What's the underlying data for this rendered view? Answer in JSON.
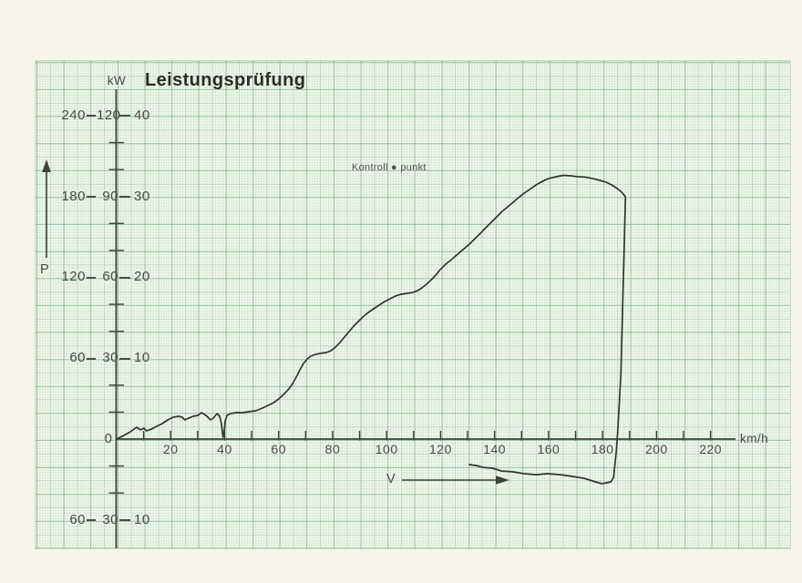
{
  "page": {
    "background": "#f8f5ec",
    "paper_background": "#f3f7ee",
    "grid_color": "#9fc8a6",
    "ink_color": "#34342e"
  },
  "header": {
    "title": "Leistungsprüfung"
  },
  "annotations": {
    "kontrollpunkt": "Kontroll ● punkt",
    "p_label": "P",
    "v_label": "V"
  },
  "y_axis": {
    "unit": "kW",
    "origin_label": "0",
    "scale_rows": [
      {
        "labels": [
          "240",
          "120",
          "40"
        ],
        "value_kw": 240
      },
      {
        "labels": [
          "180",
          "90",
          "30"
        ],
        "value_kw": 180
      },
      {
        "labels": [
          "120",
          "60",
          "20"
        ],
        "value_kw": 120
      },
      {
        "labels": [
          "60",
          "30",
          "10"
        ],
        "value_kw": 60
      },
      {
        "labels": [
          "60",
          "30",
          "10"
        ],
        "value_kw": -60
      }
    ],
    "minor_tick_values_kw": [
      220,
      200,
      160,
      140,
      100,
      80,
      40,
      20,
      -20,
      -40
    ]
  },
  "x_axis": {
    "unit": "km/h",
    "labels": [
      20,
      40,
      60,
      80,
      100,
      120,
      140,
      160,
      180,
      200,
      220
    ],
    "tick_values": [
      10,
      20,
      30,
      40,
      50,
      60,
      70,
      80,
      90,
      100,
      110,
      120,
      130,
      140,
      150,
      160,
      170,
      180,
      190,
      200,
      210,
      220
    ]
  },
  "chart_data": {
    "type": "line",
    "title": "Leistungsprüfung",
    "xlabel": "km/h",
    "ylabel": "kW",
    "x_range": [
      0,
      230
    ],
    "y_scales": {
      "outer_kW": [
        -80,
        240
      ],
      "middle": [
        -40,
        120
      ],
      "inner": [
        -13.3,
        40
      ]
    },
    "grid": true,
    "legend": "none",
    "annotation_label": "Kontroll ● punkt",
    "series": [
      {
        "name": "dyno-trace",
        "units": [
          "km/h",
          "kW (outer scale)"
        ],
        "points": [
          [
            0,
            0
          ],
          [
            2.7,
            2.7
          ],
          [
            5.1,
            5.4
          ],
          [
            7.4,
            8.8
          ],
          [
            8.8,
            6.8
          ],
          [
            10.1,
            8.1
          ],
          [
            11.1,
            6.1
          ],
          [
            12.8,
            7.4
          ],
          [
            14.9,
            9.5
          ],
          [
            16.9,
            11.5
          ],
          [
            18.9,
            14.2
          ],
          [
            20.9,
            16.2
          ],
          [
            23,
            16.9
          ],
          [
            24.3,
            16.2
          ],
          [
            25.3,
            14.2
          ],
          [
            26.7,
            15.6
          ],
          [
            28.4,
            16.9
          ],
          [
            30.1,
            17.6
          ],
          [
            31.4,
            19.6
          ],
          [
            33.1,
            17.6
          ],
          [
            34.8,
            14.2
          ],
          [
            36.1,
            16.2
          ],
          [
            37.2,
            18.9
          ],
          [
            38.2,
            16.9
          ],
          [
            38.8,
            11.5
          ],
          [
            39.4,
            1.4
          ],
          [
            39.9,
            6.8
          ],
          [
            40.2,
            13.5
          ],
          [
            40.9,
            17.6
          ],
          [
            42.2,
            18.9
          ],
          [
            44.2,
            19.6
          ],
          [
            46.6,
            19.6
          ],
          [
            49,
            20.3
          ],
          [
            51.7,
            21
          ],
          [
            54,
            23
          ],
          [
            56.1,
            25
          ],
          [
            58.1,
            27
          ],
          [
            60.1,
            29.8
          ],
          [
            61.8,
            33.1
          ],
          [
            63.5,
            36.5
          ],
          [
            65.2,
            41.2
          ],
          [
            66.5,
            46
          ],
          [
            67.9,
            51.4
          ],
          [
            69.2,
            56.1
          ],
          [
            70.6,
            59.5
          ],
          [
            71.9,
            61.5
          ],
          [
            73.6,
            62.9
          ],
          [
            75.6,
            63.6
          ],
          [
            77.7,
            64.2
          ],
          [
            79.4,
            65.6
          ],
          [
            81.1,
            68.3
          ],
          [
            82.7,
            71.7
          ],
          [
            84.4,
            75.7
          ],
          [
            86.1,
            79.8
          ],
          [
            87.8,
            83.8
          ],
          [
            89.5,
            87.2
          ],
          [
            91.2,
            90.6
          ],
          [
            93.2,
            94
          ],
          [
            95.2,
            96.7
          ],
          [
            97.2,
            99.4
          ],
          [
            99.3,
            102.1
          ],
          [
            101.3,
            104.1
          ],
          [
            103.3,
            106.2
          ],
          [
            105.4,
            107.5
          ],
          [
            107.7,
            108.2
          ],
          [
            109.8,
            108.9
          ],
          [
            111.5,
            110.2
          ],
          [
            113.1,
            112.2
          ],
          [
            114.8,
            114.9
          ],
          [
            116.6,
            118.3
          ],
          [
            118.2,
            121.7
          ],
          [
            119.9,
            125.8
          ],
          [
            121.9,
            129.8
          ],
          [
            124,
            133.2
          ],
          [
            126,
            136.6
          ],
          [
            128.3,
            140.6
          ],
          [
            130.7,
            144.7
          ],
          [
            132.7,
            148.7
          ],
          [
            134.8,
            152.8
          ],
          [
            136.8,
            156.9
          ],
          [
            138.8,
            160.9
          ],
          [
            140.9,
            165
          ],
          [
            142.8,
            169
          ],
          [
            144.9,
            172.4
          ],
          [
            146.9,
            175.8
          ],
          [
            148.9,
            179.2
          ],
          [
            151,
            182.6
          ],
          [
            153,
            185.3
          ],
          [
            155.4,
            188.6
          ],
          [
            157.7,
            191.3
          ],
          [
            160.1,
            193.4
          ],
          [
            162.8,
            194.7
          ],
          [
            165.5,
            195.7
          ],
          [
            168.2,
            195.4
          ],
          [
            170.9,
            194.7
          ],
          [
            173.6,
            194.4
          ],
          [
            176.3,
            193.4
          ],
          [
            179,
            192
          ],
          [
            181.3,
            190.7
          ],
          [
            183.4,
            188.6
          ],
          [
            185.4,
            186
          ],
          [
            187.1,
            183.2
          ],
          [
            188.5,
            179.9
          ],
          [
            188.1,
            150.1
          ],
          [
            187.4,
            96
          ],
          [
            186.8,
            48.7
          ],
          [
            185.7,
            8.1
          ],
          [
            185.1,
            -8.8
          ],
          [
            184.4,
            -22.3
          ],
          [
            184.1,
            -28.4
          ],
          [
            183.1,
            -31.8
          ],
          [
            179.7,
            -33.1
          ],
          [
            176.3,
            -31.1
          ],
          [
            173,
            -29.1
          ],
          [
            168.9,
            -27.7
          ],
          [
            164.5,
            -26.4
          ],
          [
            159.5,
            -25.7
          ],
          [
            155.4,
            -26.4
          ],
          [
            151,
            -25.7
          ],
          [
            146.6,
            -24.3
          ],
          [
            142.6,
            -23.7
          ],
          [
            139.2,
            -21.6
          ],
          [
            135.8,
            -21
          ],
          [
            133.1,
            -19.6
          ],
          [
            130.7,
            -18.9
          ]
        ]
      }
    ]
  }
}
